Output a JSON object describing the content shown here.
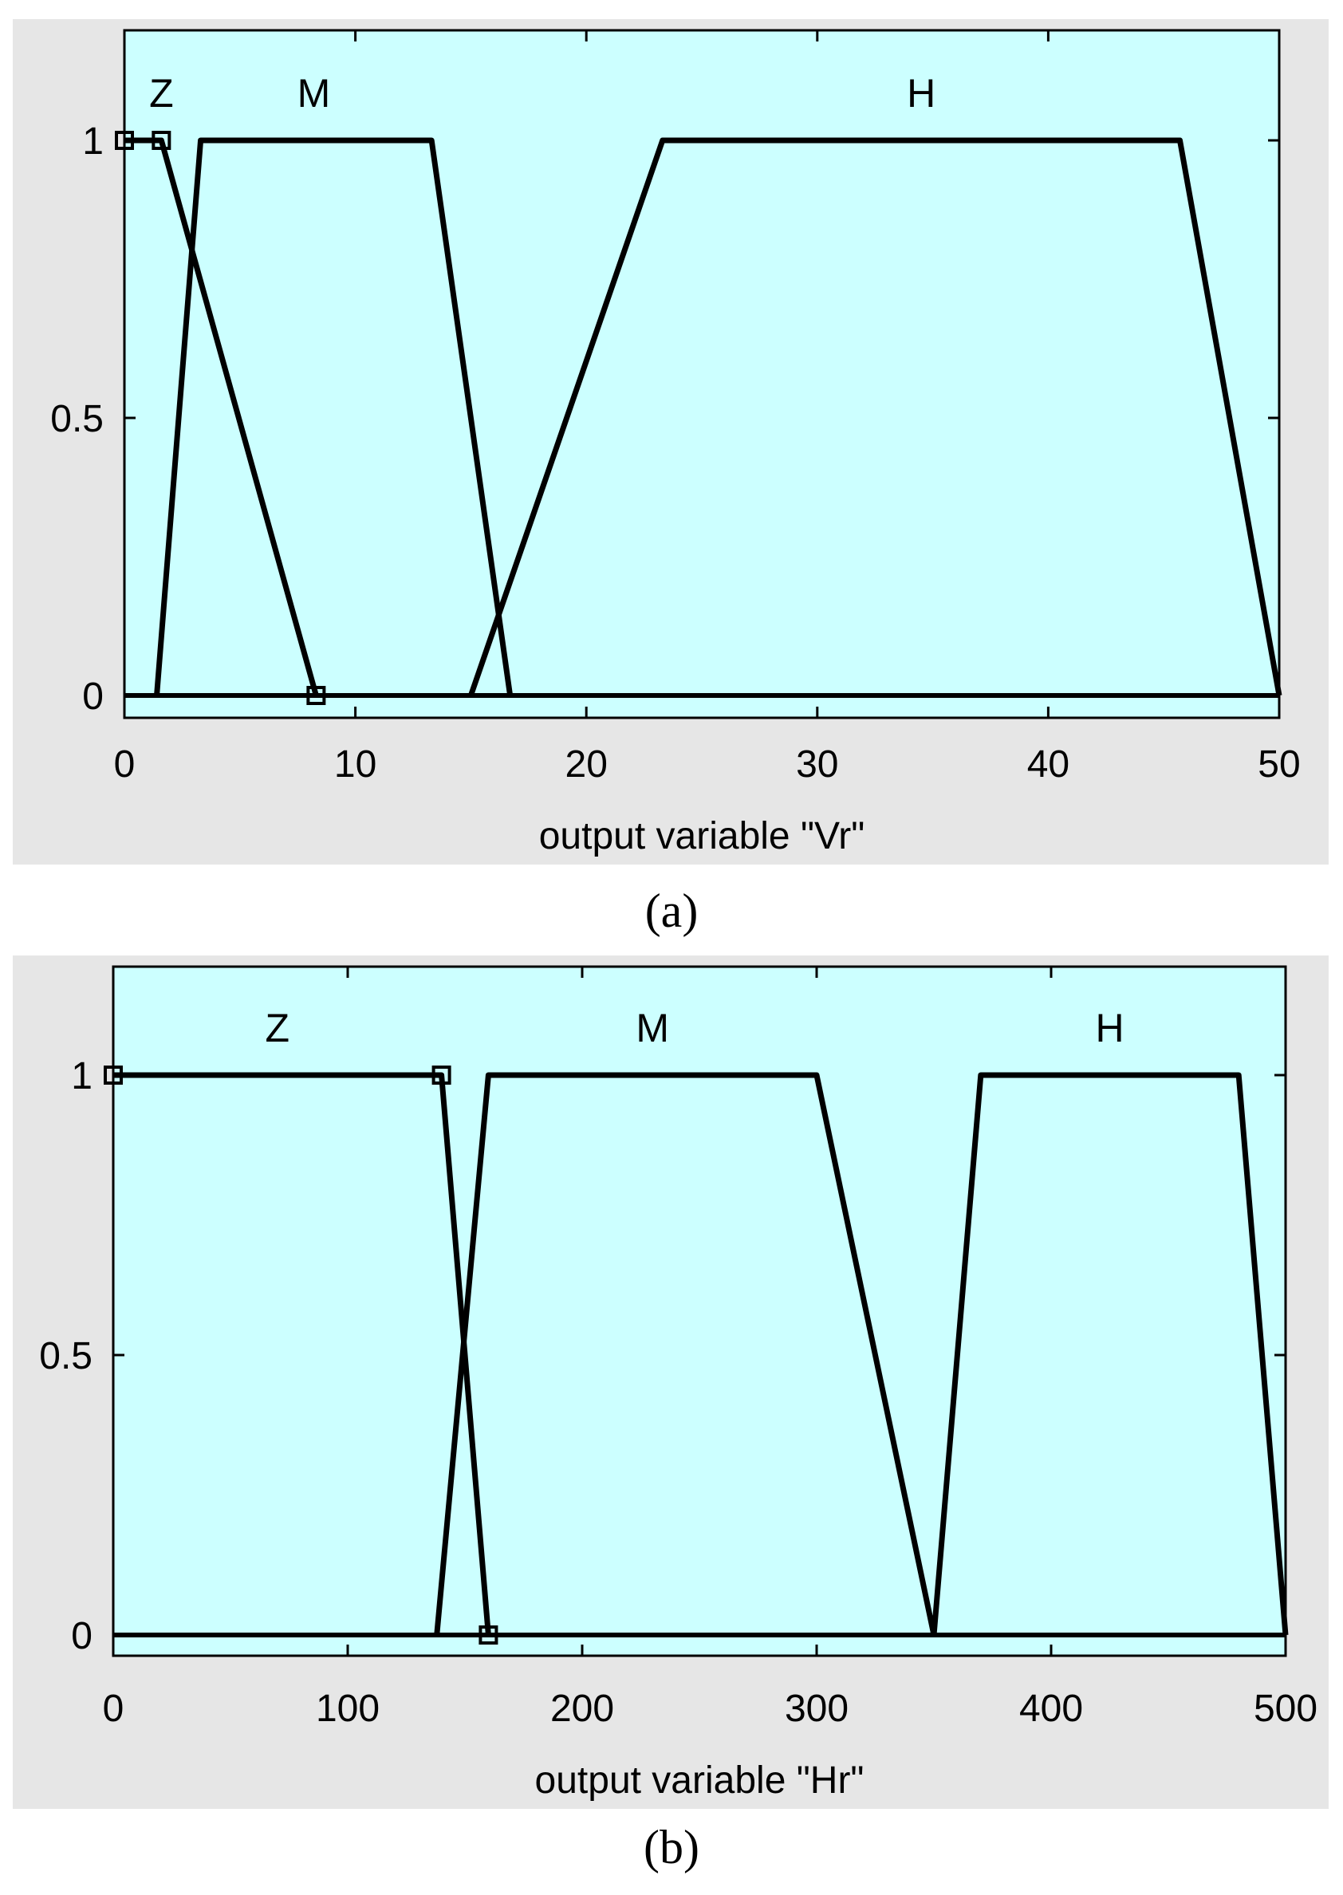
{
  "chart_data": [
    {
      "type": "line",
      "caption": "(a)",
      "xlabel": "output variable \"Vr\"",
      "ylabel": "",
      "xlim": [
        0,
        50
      ],
      "ylim": [
        -0.05,
        1.2
      ],
      "xticks": [
        0,
        10,
        20,
        30,
        40,
        50
      ],
      "xtick_labels": [
        "0",
        "10",
        "20",
        "30",
        "40",
        "50"
      ],
      "yticks": [
        0,
        0.5,
        1
      ],
      "ytick_labels": [
        "0",
        "0.5",
        "1"
      ],
      "grid": false,
      "background": "#ccffff",
      "line_color": "#000000",
      "series": [
        {
          "name": "Z",
          "label_x": 1.6,
          "x": [
            0,
            1.6,
            8.3
          ],
          "y": [
            1,
            1,
            0
          ]
        },
        {
          "name": "M",
          "label_x": 8.2,
          "x": [
            1.4,
            3.3,
            13.3,
            16.7
          ],
          "y": [
            0,
            1,
            1,
            0
          ]
        },
        {
          "name": "H",
          "label_x": 34.5,
          "x": [
            15,
            23.3,
            45.7,
            50
          ],
          "y": [
            0,
            1,
            1,
            0
          ]
        }
      ]
    },
    {
      "type": "line",
      "caption": "(b)",
      "xlabel": "output variable \"Hr\"",
      "ylabel": "",
      "xlim": [
        0,
        500
      ],
      "ylim": [
        -0.05,
        1.2
      ],
      "xticks": [
        0,
        100,
        200,
        300,
        400,
        500
      ],
      "xtick_labels": [
        "0",
        "100",
        "200",
        "300",
        "400",
        "500"
      ],
      "yticks": [
        0,
        0.5,
        1
      ],
      "ytick_labels": [
        "0",
        "0.5",
        "1"
      ],
      "grid": false,
      "background": "#ccffff",
      "line_color": "#000000",
      "series": [
        {
          "name": "Z",
          "label_x": 70,
          "x": [
            0,
            140,
            160
          ],
          "y": [
            1,
            1,
            0
          ]
        },
        {
          "name": "M",
          "label_x": 230,
          "x": [
            138,
            160,
            300,
            350
          ],
          "y": [
            0,
            1,
            1,
            0
          ]
        },
        {
          "name": "H",
          "label_x": 425,
          "x": [
            350,
            370,
            480,
            500
          ],
          "y": [
            0,
            1,
            1,
            0
          ]
        }
      ]
    }
  ]
}
